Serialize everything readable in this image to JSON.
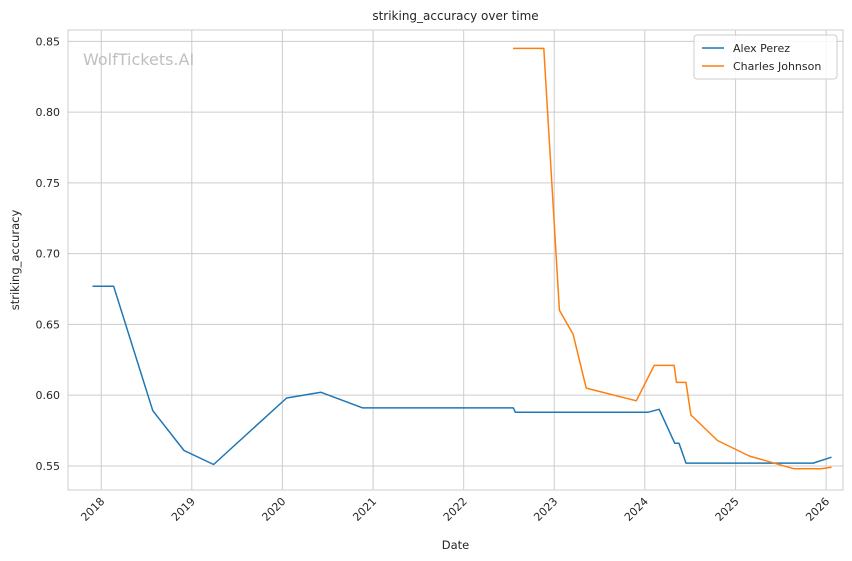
{
  "chart_data": {
    "type": "line",
    "title": "striking_accuracy over time",
    "xlabel": "Date",
    "ylabel": "striking_accuracy",
    "watermark": "WolfTickets.AI",
    "grid": true,
    "legend_position": "top-right",
    "xlim": [
      "2017-08-20",
      "2026-03-10"
    ],
    "ylim": [
      0.533,
      0.858
    ],
    "x_ticks": [
      "2018-01-01",
      "2019-01-01",
      "2020-01-01",
      "2021-01-01",
      "2022-01-01",
      "2023-01-01",
      "2024-01-01",
      "2025-01-01",
      "2026-01-01"
    ],
    "x_tick_labels": [
      "2018",
      "2019",
      "2020",
      "2021",
      "2022",
      "2023",
      "2024",
      "2025",
      "2026"
    ],
    "y_ticks": [
      0.55,
      0.6,
      0.65,
      0.7,
      0.75,
      0.8,
      0.85
    ],
    "y_tick_labels": [
      "0.55",
      "0.60",
      "0.65",
      "0.70",
      "0.75",
      "0.80",
      "0.85"
    ],
    "series": [
      {
        "name": "Alex Perez",
        "color": "#1f77b4",
        "points": [
          [
            "2017-11-30",
            0.677
          ],
          [
            "2018-02-20",
            0.677
          ],
          [
            "2018-07-28",
            0.589
          ],
          [
            "2018-11-30",
            0.561
          ],
          [
            "2019-03-30",
            0.551
          ],
          [
            "2020-01-18",
            0.598
          ],
          [
            "2020-06-05",
            0.602
          ],
          [
            "2020-11-20",
            0.591
          ],
          [
            "2022-07-20",
            0.591
          ],
          [
            "2022-07-28",
            0.588
          ],
          [
            "2024-01-15",
            0.588
          ],
          [
            "2024-02-28",
            0.59
          ],
          [
            "2024-05-01",
            0.566
          ],
          [
            "2024-05-18",
            0.566
          ],
          [
            "2024-06-15",
            0.552
          ],
          [
            "2025-11-10",
            0.552
          ],
          [
            "2026-01-20",
            0.556
          ]
        ]
      },
      {
        "name": "Charles Johnson",
        "color": "#ff7f0e",
        "points": [
          [
            "2022-07-22",
            0.845
          ],
          [
            "2022-11-20",
            0.845
          ],
          [
            "2023-01-22",
            0.66
          ],
          [
            "2023-03-18",
            0.643
          ],
          [
            "2023-05-10",
            0.605
          ],
          [
            "2023-11-28",
            0.596
          ],
          [
            "2024-02-08",
            0.621
          ],
          [
            "2024-04-28",
            0.621
          ],
          [
            "2024-05-08",
            0.609
          ],
          [
            "2024-06-15",
            0.609
          ],
          [
            "2024-07-05",
            0.586
          ],
          [
            "2024-10-20",
            0.568
          ],
          [
            "2025-02-25",
            0.557
          ],
          [
            "2025-08-25",
            0.548
          ],
          [
            "2025-12-10",
            0.548
          ],
          [
            "2026-01-20",
            0.549
          ]
        ]
      }
    ]
  }
}
